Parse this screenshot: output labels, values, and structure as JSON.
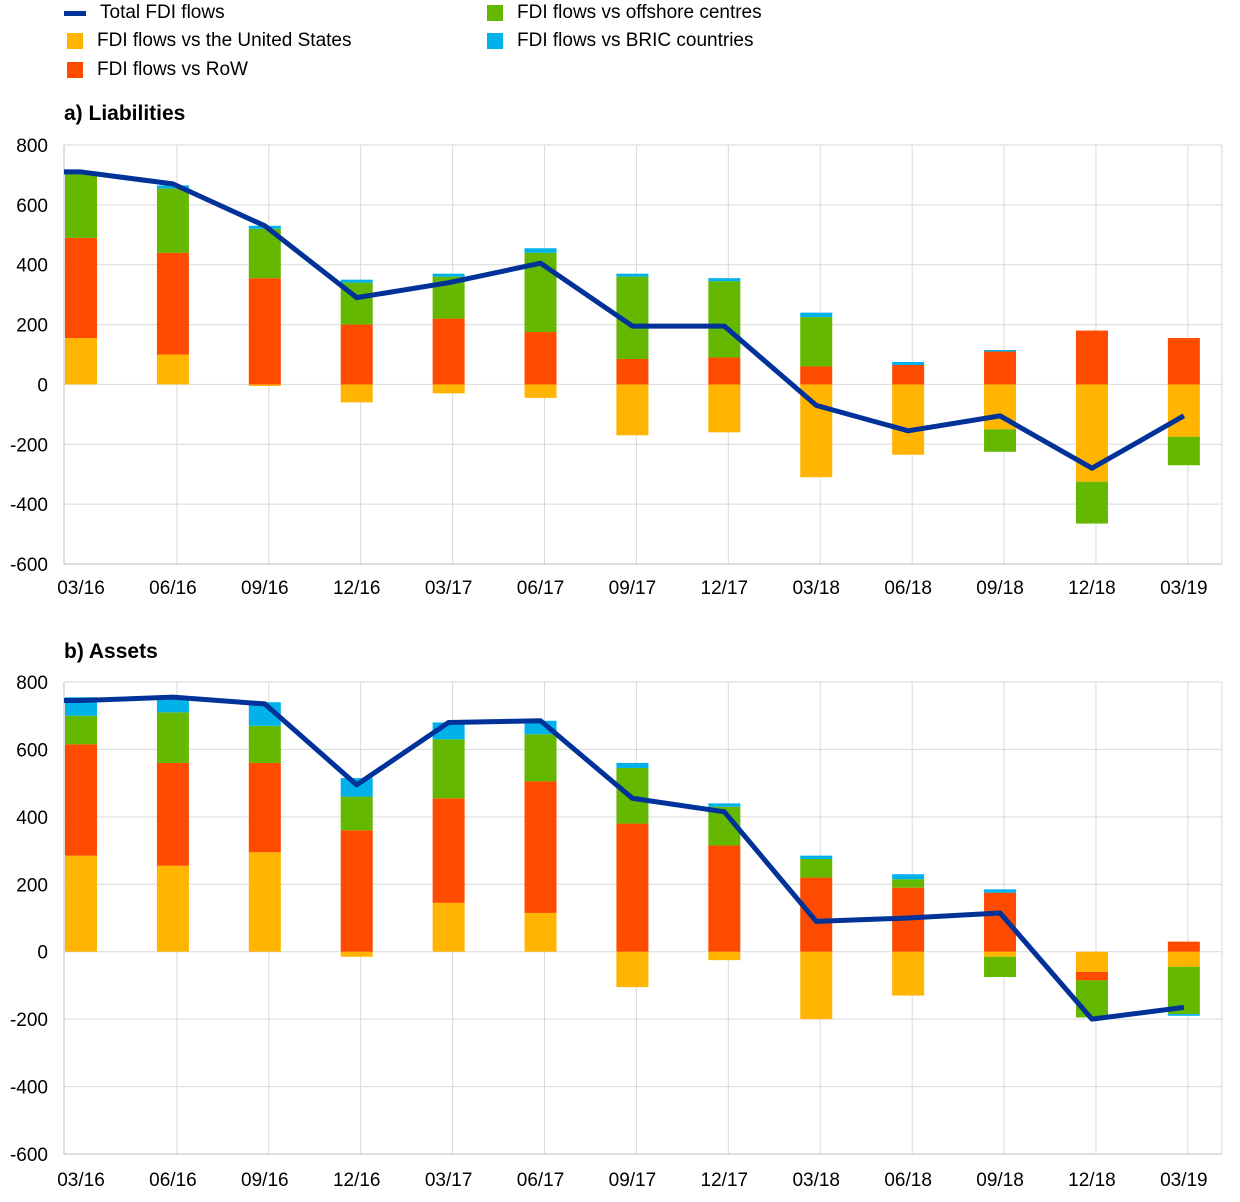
{
  "legend": {
    "items": [
      {
        "key": "total",
        "label": "Total FDI flows",
        "kind": "line",
        "color": "#003299"
      },
      {
        "key": "us",
        "label": "FDI flows vs the United States",
        "kind": "box",
        "color": "#FFB400"
      },
      {
        "key": "row",
        "label": "FDI flows vs RoW",
        "kind": "box",
        "color": "#FF4B00"
      },
      {
        "key": "offshore",
        "label": "FDI flows vs offshore centres",
        "kind": "box",
        "color": "#65B800"
      },
      {
        "key": "bric",
        "label": "FDI flows vs BRIC countries",
        "kind": "box",
        "color": "#00B1EA"
      }
    ]
  },
  "chart_data": [
    {
      "type": "bar",
      "stacked": true,
      "title": "a) Liabilities",
      "xlabel": "",
      "ylabel": "",
      "ylim": [
        -600,
        800
      ],
      "yticks": [
        -600,
        -400,
        -200,
        0,
        200,
        400,
        600,
        800
      ],
      "grid": true,
      "legend": "top",
      "categories": [
        "03/16",
        "06/16",
        "09/16",
        "12/16",
        "03/17",
        "06/17",
        "09/17",
        "12/17",
        "03/18",
        "06/18",
        "09/18",
        "12/18",
        "03/19"
      ],
      "series": [
        {
          "name": "FDI flows vs the United States",
          "key": "us",
          "values": [
            155,
            100,
            -5,
            -60,
            -30,
            -45,
            -170,
            -160,
            -310,
            -235,
            -150,
            -325,
            -175
          ]
        },
        {
          "name": "FDI flows vs RoW",
          "key": "row",
          "values": [
            335,
            340,
            355,
            200,
            220,
            175,
            85,
            90,
            60,
            65,
            110,
            180,
            155
          ]
        },
        {
          "name": "FDI flows vs offshore centres",
          "key": "offshore",
          "values": [
            215,
            215,
            165,
            140,
            140,
            265,
            275,
            255,
            165,
            0,
            -75,
            -140,
            -95
          ]
        },
        {
          "name": "FDI flows vs BRIC countries",
          "key": "bric",
          "values": [
            5,
            10,
            10,
            10,
            10,
            15,
            10,
            10,
            15,
            10,
            5,
            0,
            0
          ]
        }
      ],
      "line": {
        "name": "Total FDI flows",
        "key": "total",
        "x_start": "03/16",
        "values": [
          710,
          670,
          530,
          290,
          340,
          405,
          195,
          195,
          -70,
          -155,
          -105,
          -280,
          -105
        ]
      }
    },
    {
      "type": "bar",
      "stacked": true,
      "title": "b) Assets",
      "xlabel": "",
      "ylabel": "",
      "ylim": [
        -600,
        800
      ],
      "yticks": [
        -600,
        -400,
        -200,
        0,
        200,
        400,
        600,
        800
      ],
      "grid": true,
      "legend": "top",
      "categories": [
        "03/16",
        "06/16",
        "09/16",
        "12/16",
        "03/17",
        "06/17",
        "09/17",
        "12/17",
        "03/18",
        "06/18",
        "09/18",
        "12/18",
        "03/19"
      ],
      "series": [
        {
          "name": "FDI flows vs the United States",
          "key": "us",
          "values": [
            285,
            255,
            295,
            -15,
            145,
            115,
            -105,
            -25,
            -200,
            -130,
            -15,
            -60,
            -45
          ]
        },
        {
          "name": "FDI flows vs RoW",
          "key": "row",
          "values": [
            330,
            305,
            265,
            360,
            310,
            390,
            380,
            315,
            220,
            190,
            175,
            -25,
            30
          ]
        },
        {
          "name": "FDI flows vs offshore centres",
          "key": "offshore",
          "values": [
            85,
            150,
            110,
            100,
            175,
            140,
            165,
            115,
            55,
            25,
            -60,
            -110,
            -140
          ]
        },
        {
          "name": "FDI flows vs BRIC countries",
          "key": "bric",
          "values": [
            55,
            40,
            70,
            55,
            50,
            40,
            15,
            10,
            10,
            15,
            10,
            0,
            -5
          ]
        }
      ],
      "line": {
        "name": "Total FDI flows",
        "key": "total",
        "x_start": "03/16",
        "values": [
          745,
          755,
          735,
          495,
          680,
          685,
          455,
          415,
          90,
          100,
          115,
          -200,
          -165
        ]
      }
    }
  ]
}
